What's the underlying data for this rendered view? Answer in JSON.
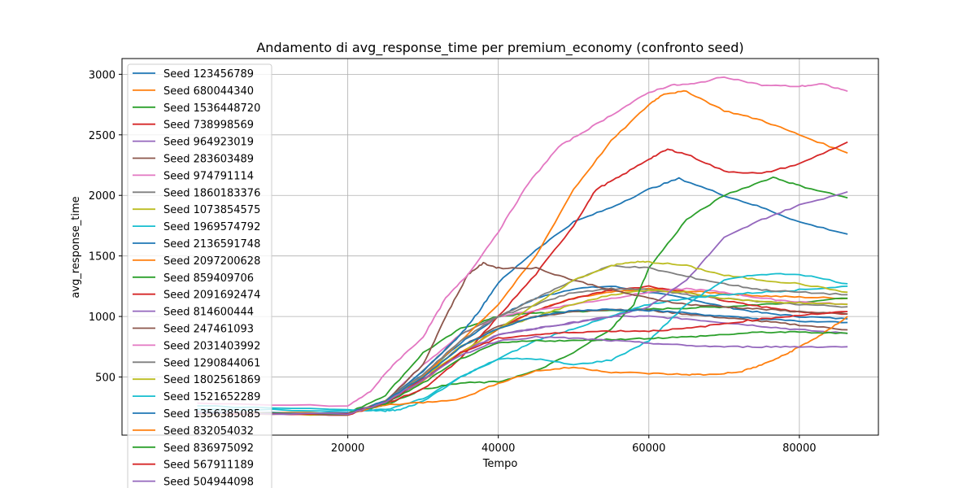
{
  "chart_data": {
    "type": "line",
    "title": "Andamento di avg_response_time per premium_economy (confronto seed)",
    "xlabel": "Tempo",
    "ylabel": "avg_response_time",
    "xlim": [
      -10000,
      90500
    ],
    "ylim": [
      20,
      3130
    ],
    "xticks": [
      20000,
      40000,
      60000,
      80000
    ],
    "yticks": [
      500,
      1000,
      1500,
      2000,
      2500,
      3000
    ],
    "grid": true,
    "legend_position": "top-left",
    "series": [
      {
        "name": "Seed 123456789",
        "color": "#1f77b4",
        "x": [
          0,
          20000,
          25000,
          30000,
          35000,
          40000,
          45000,
          50000,
          55000,
          60000,
          65000,
          70000,
          75000,
          80000,
          86400
        ],
        "values": [
          200,
          195,
          290,
          520,
          780,
          1000,
          1150,
          1230,
          1250,
          1200,
          1150,
          1080,
          1030,
          1000,
          980
        ]
      },
      {
        "name": "Seed 680044340",
        "color": "#ff7f0e",
        "x": [
          0,
          20000,
          25000,
          30000,
          35000,
          40000,
          45000,
          50000,
          55000,
          60000,
          65000,
          70000,
          75000,
          80000,
          86400
        ],
        "values": [
          210,
          200,
          300,
          470,
          700,
          900,
          1050,
          1150,
          1200,
          1230,
          1210,
          1190,
          1170,
          1160,
          1150
        ]
      },
      {
        "name": "Seed 1536448720",
        "color": "#2ca02c",
        "x": [
          0,
          20000,
          25000,
          30000,
          35000,
          40000,
          45000,
          50000,
          55000,
          60000,
          65000,
          70000,
          75000,
          80000,
          86400
        ],
        "values": [
          205,
          200,
          350,
          700,
          900,
          1000,
          1030,
          1040,
          1050,
          1060,
          1070,
          1080,
          1100,
          1120,
          1150
        ]
      },
      {
        "name": "Seed 738998569",
        "color": "#d62728",
        "x": [
          0,
          20000,
          25000,
          30000,
          35000,
          40000,
          45000,
          50000,
          55000,
          60000,
          65000,
          70000,
          75000,
          80000,
          86400
        ],
        "values": [
          200,
          195,
          280,
          480,
          700,
          900,
          1050,
          1150,
          1220,
          1250,
          1200,
          1130,
          1080,
          1040,
          1020
        ]
      },
      {
        "name": "Seed 964923019",
        "color": "#9467bd",
        "x": [
          0,
          20000,
          25000,
          30000,
          35000,
          40000,
          45000,
          50000,
          55000,
          60000,
          65000,
          70000,
          75000,
          80000,
          86400
        ],
        "values": [
          195,
          190,
          280,
          480,
          700,
          850,
          900,
          950,
          1000,
          1000,
          980,
          950,
          920,
          890,
          860
        ]
      },
      {
        "name": "Seed 283603489",
        "color": "#8c564b",
        "x": [
          0,
          20000,
          25000,
          30000,
          35000,
          40000,
          45000,
          50000,
          55000,
          60000,
          65000,
          70000,
          75000,
          80000,
          86400
        ],
        "values": [
          200,
          195,
          290,
          500,
          750,
          920,
          1000,
          1040,
          1060,
          1050,
          1020,
          990,
          960,
          930,
          890
        ]
      },
      {
        "name": "Seed 974791114",
        "color": "#e377c2",
        "x": [
          0,
          20000,
          25000,
          30000,
          35000,
          40000,
          45000,
          50000,
          55000,
          60000,
          65000,
          70000,
          75000,
          80000,
          86400
        ],
        "values": [
          200,
          195,
          300,
          600,
          850,
          1000,
          1050,
          1100,
          1150,
          1200,
          1230,
          1200,
          1150,
          1120,
          1100
        ]
      },
      {
        "name": "Seed 1860183376",
        "color": "#7f7f7f",
        "x": [
          0,
          20000,
          25000,
          30000,
          35000,
          40000,
          45000,
          50000,
          55000,
          60000,
          65000,
          70000,
          75000,
          80000,
          86400
        ],
        "values": [
          200,
          200,
          300,
          550,
          850,
          1000,
          1100,
          1200,
          1230,
          1220,
          1180,
          1150,
          1120,
          1100,
          1080
        ]
      },
      {
        "name": "Seed 1073854575",
        "color": "#bcbd22",
        "x": [
          0,
          20000,
          25000,
          30000,
          35000,
          40000,
          45000,
          50000,
          55000,
          60000,
          65000,
          70000,
          75000,
          80000,
          86400
        ],
        "values": [
          195,
          190,
          300,
          500,
          750,
          900,
          1000,
          1100,
          1180,
          1220,
          1200,
          1150,
          1120,
          1110,
          1100
        ]
      },
      {
        "name": "Seed 1969574792",
        "color": "#17becf",
        "x": [
          0,
          20000,
          25000,
          30000,
          35000,
          40000,
          45000,
          50000,
          55000,
          60000,
          65000,
          70000,
          75000,
          80000,
          86400
        ],
        "values": [
          240,
          220,
          230,
          320,
          500,
          650,
          800,
          900,
          1000,
          1100,
          1150,
          1180,
          1200,
          1220,
          1250
        ]
      },
      {
        "name": "Seed 2136591748",
        "color": "#1f77b4",
        "x": [
          0,
          20000,
          25000,
          30000,
          35000,
          37500,
          40000,
          45000,
          50000,
          55000,
          60000,
          64000,
          70000,
          75000,
          80000,
          86400
        ],
        "values": [
          210,
          200,
          280,
          550,
          850,
          1050,
          1280,
          1550,
          1780,
          1900,
          2050,
          2140,
          2000,
          1900,
          1780,
          1680
        ]
      },
      {
        "name": "Seed 2097200628",
        "color": "#ff7f0e",
        "x": [
          0,
          20000,
          25000,
          30000,
          35000,
          40000,
          45000,
          50000,
          55000,
          60000,
          62000,
          65000,
          70000,
          75000,
          80000,
          86400
        ],
        "values": [
          200,
          195,
          300,
          500,
          800,
          1100,
          1500,
          2050,
          2450,
          2750,
          2840,
          2860,
          2700,
          2620,
          2500,
          2350
        ]
      },
      {
        "name": "Seed 859409706",
        "color": "#2ca02c",
        "x": [
          0,
          20000,
          25000,
          30000,
          35000,
          40000,
          45000,
          50000,
          55000,
          58000,
          60000,
          65000,
          70000,
          76500,
          80000,
          86400
        ],
        "values": [
          205,
          200,
          270,
          400,
          450,
          460,
          550,
          700,
          900,
          1100,
          1400,
          1800,
          2000,
          2150,
          2080,
          1980
        ]
      },
      {
        "name": "Seed 2091692474",
        "color": "#d62728",
        "x": [
          0,
          20000,
          25000,
          30000,
          35000,
          40000,
          45000,
          50000,
          53000,
          56000,
          60000,
          62500,
          65000,
          70000,
          75000,
          80000,
          86400
        ],
        "values": [
          195,
          190,
          280,
          400,
          650,
          1000,
          1350,
          1750,
          2050,
          2150,
          2300,
          2380,
          2340,
          2200,
          2180,
          2260,
          2440
        ]
      },
      {
        "name": "Seed 814600444",
        "color": "#9467bd",
        "x": [
          0,
          20000,
          25000,
          30000,
          35000,
          40000,
          45000,
          50000,
          55000,
          60000,
          65000,
          70000,
          75000,
          80000,
          86400
        ],
        "values": [
          200,
          195,
          300,
          500,
          700,
          850,
          900,
          950,
          1000,
          1080,
          1300,
          1650,
          1800,
          1920,
          2030
        ]
      },
      {
        "name": "Seed 247461093",
        "color": "#8c564b",
        "x": [
          0,
          20000,
          25000,
          30000,
          33000,
          36000,
          38000,
          40000,
          45000,
          50000,
          55000,
          60000,
          65000,
          70000,
          75000,
          80000,
          86400
        ],
        "values": [
          200,
          195,
          300,
          600,
          1000,
          1350,
          1440,
          1400,
          1400,
          1300,
          1220,
          1150,
          1100,
          1080,
          1060,
          1040,
          1020
        ]
      },
      {
        "name": "Seed 2031403992",
        "color": "#e377c2",
        "x": [
          0,
          20000,
          23000,
          26000,
          30000,
          33000,
          36000,
          40000,
          44000,
          48000,
          52000,
          56000,
          60000,
          63000,
          66000,
          70000,
          75000,
          80000,
          83000,
          86400
        ],
        "values": [
          280,
          260,
          380,
          600,
          830,
          1150,
          1350,
          1700,
          2100,
          2400,
          2550,
          2700,
          2850,
          2910,
          2920,
          2980,
          2910,
          2900,
          2920,
          2860
        ]
      },
      {
        "name": "Seed 1290844061",
        "color": "#7f7f7f",
        "x": [
          0,
          20000,
          25000,
          30000,
          35000,
          40000,
          45000,
          50000,
          55000,
          60000,
          65000,
          70000,
          75000,
          80000,
          86400
        ],
        "values": [
          200,
          195,
          300,
          520,
          800,
          1000,
          1150,
          1300,
          1420,
          1400,
          1330,
          1270,
          1220,
          1200,
          1180
        ]
      },
      {
        "name": "Seed 1802561869",
        "color": "#bcbd22",
        "x": [
          0,
          20000,
          25000,
          30000,
          35000,
          40000,
          45000,
          50000,
          55000,
          58000,
          60000,
          65000,
          70000,
          75000,
          80000,
          86400
        ],
        "values": [
          200,
          195,
          300,
          500,
          700,
          900,
          1100,
          1300,
          1420,
          1450,
          1450,
          1420,
          1340,
          1300,
          1270,
          1200
        ]
      },
      {
        "name": "Seed 1521652289",
        "color": "#17becf",
        "x": [
          0,
          20000,
          25000,
          27000,
          30000,
          35000,
          40000,
          45000,
          50000,
          55000,
          60000,
          65000,
          70000,
          75000,
          80000,
          86400
        ],
        "values": [
          260,
          230,
          220,
          230,
          300,
          500,
          650,
          650,
          600,
          640,
          800,
          1100,
          1300,
          1350,
          1350,
          1270
        ]
      },
      {
        "name": "Seed 1356385085",
        "color": "#1f77b4",
        "x": [
          0,
          20000,
          25000,
          30000,
          35000,
          40000,
          45000,
          50000,
          55000,
          60000,
          65000,
          70000,
          75000,
          80000,
          86400
        ],
        "values": [
          205,
          200,
          300,
          500,
          750,
          900,
          1000,
          1050,
          1060,
          1050,
          1030,
          1000,
          980,
          960,
          950
        ]
      },
      {
        "name": "Seed 832054032",
        "color": "#ff7f0e",
        "x": [
          0,
          20000,
          25000,
          30000,
          35000,
          40000,
          45000,
          50000,
          55000,
          60000,
          65000,
          68000,
          72000,
          75000,
          78000,
          80000,
          83000,
          86400
        ],
        "values": [
          200,
          195,
          270,
          290,
          320,
          450,
          550,
          580,
          540,
          530,
          520,
          520,
          540,
          600,
          680,
          750,
          850,
          1000
        ]
      },
      {
        "name": "Seed 836975092",
        "color": "#2ca02c",
        "x": [
          0,
          20000,
          25000,
          30000,
          35000,
          40000,
          45000,
          50000,
          55000,
          60000,
          65000,
          70000,
          75000,
          80000,
          86400
        ],
        "values": [
          200,
          195,
          280,
          450,
          650,
          780,
          800,
          800,
          810,
          820,
          830,
          850,
          870,
          870,
          860
        ]
      },
      {
        "name": "Seed 567911189",
        "color": "#d62728",
        "x": [
          0,
          20000,
          25000,
          30000,
          35000,
          40000,
          45000,
          50000,
          55000,
          60000,
          65000,
          70000,
          75000,
          80000,
          86400
        ],
        "values": [
          200,
          195,
          290,
          480,
          700,
          820,
          850,
          870,
          880,
          880,
          900,
          940,
          980,
          1010,
          1040
        ]
      },
      {
        "name": "Seed 504944098",
        "color": "#9467bd",
        "x": [
          0,
          20000,
          25000,
          30000,
          35000,
          40000,
          45000,
          50000,
          55000,
          60000,
          65000,
          70000,
          75000,
          80000,
          86400
        ],
        "values": [
          200,
          195,
          290,
          480,
          680,
          800,
          830,
          820,
          800,
          780,
          760,
          750,
          750,
          750,
          750
        ]
      }
    ]
  }
}
